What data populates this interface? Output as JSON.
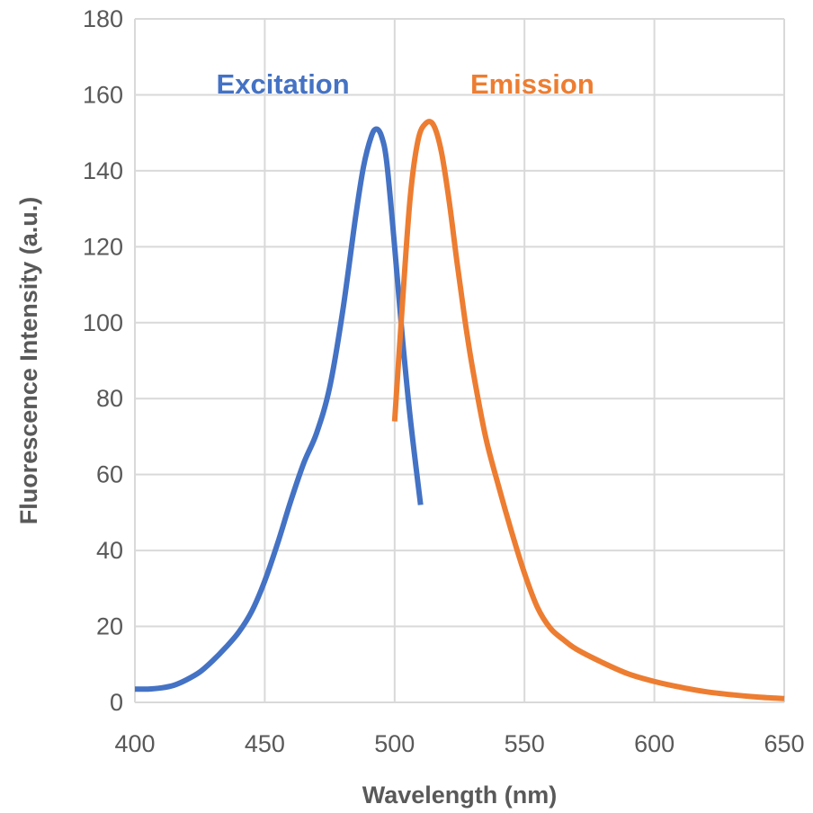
{
  "chart_data": {
    "type": "line",
    "title": "",
    "xlabel": "Wavelength (nm)",
    "ylabel": "Fluorescence Intensity (a.u.)",
    "xlim": [
      400,
      650
    ],
    "ylim": [
      0,
      180
    ],
    "xticks": [
      "400",
      "450",
      "500",
      "550",
      "600",
      "650"
    ],
    "yticks": [
      "0",
      "20",
      "40",
      "60",
      "80",
      "100",
      "120",
      "140",
      "160",
      "180"
    ],
    "grid": true,
    "legend": "none",
    "series": [
      {
        "name": "Excitation",
        "color": "#4472C4",
        "x": [
          400,
          405,
          410,
          415,
          420,
          425,
          430,
          435,
          440,
          445,
          450,
          455,
          460,
          465,
          470,
          475,
          480,
          485,
          488,
          491,
          493,
          495,
          497,
          500,
          503,
          506,
          510
        ],
        "y": [
          3.5,
          3.5,
          3.8,
          4.5,
          6,
          8,
          11,
          14.5,
          18.5,
          24,
          32,
          42,
          53,
          63,
          71,
          83,
          103,
          128,
          141,
          149,
          151,
          149,
          142,
          120,
          96,
          75,
          52
        ]
      },
      {
        "name": "Emission",
        "color": "#ED7D31",
        "x": [
          500,
          503,
          506,
          509,
          512,
          515,
          518,
          521,
          524,
          527,
          530,
          535,
          540,
          545,
          550,
          555,
          560,
          565,
          570,
          580,
          590,
          600,
          610,
          620,
          630,
          640,
          650
        ],
        "y": [
          74,
          105,
          133,
          148,
          152.5,
          152,
          145,
          132,
          116,
          101,
          88,
          70,
          57,
          45,
          34,
          25,
          19.5,
          16.5,
          14,
          10.5,
          7.5,
          5.5,
          4,
          2.8,
          2,
          1.4,
          1
        ]
      }
    ],
    "annotations": [
      {
        "text": "Excitation",
        "color": "#4472C4",
        "x": 457,
        "y": 163
      },
      {
        "text": "Emission",
        "color": "#ED7D31",
        "x": 553,
        "y": 163
      }
    ]
  }
}
